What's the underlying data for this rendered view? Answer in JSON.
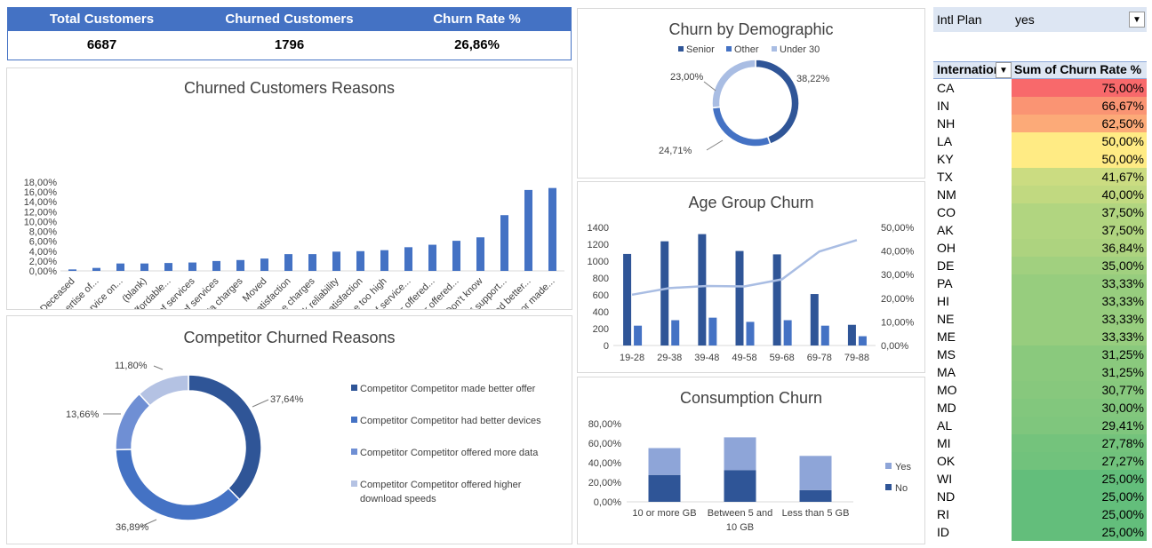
{
  "kpi": {
    "headers": [
      "Total Customers",
      "Churned Customers",
      "Churn Rate %"
    ],
    "values": [
      "6687",
      "1796",
      "26,86%"
    ]
  },
  "reasons_chart": {
    "title": "Churned Customers Reasons",
    "yticks": [
      "0,00%",
      "2,00%",
      "4,00%",
      "6,00%",
      "8,00%",
      "10,00%",
      "12,00%",
      "14,00%",
      "16,00%",
      "18,00%"
    ],
    "color": "#4472c4",
    "chart_data": {
      "type": "bar",
      "categories": [
        "Deceased",
        "Poor expertise of...",
        "Lack of self-service on...",
        "(blank)",
        "Lack of affordable...",
        "Poor expertise of services",
        "Limited range of services",
        "Extra data charges",
        "Moved",
        "Service dissatisfaction",
        "Long distance charges",
        "Network reliability",
        "Product dissatisfaction",
        "Price too high",
        "Attitude of service...",
        "Competitor offered...",
        "Competitor offered...",
        "Don't know",
        "Attitude of support...",
        "Competitor had better...",
        "Competitor made..."
      ],
      "values": [
        0.3,
        0.6,
        1.5,
        1.5,
        1.6,
        1.7,
        2.0,
        2.2,
        2.5,
        3.4,
        3.4,
        3.9,
        4.0,
        4.2,
        4.8,
        5.3,
        6.1,
        6.8,
        11.3,
        16.4,
        16.8
      ],
      "ylim": [
        0,
        18
      ]
    }
  },
  "competitor_chart": {
    "title": "Competitor Churned Reasons",
    "chart_data": {
      "type": "pie",
      "labels": [
        "Competitor Competitor made better offer",
        "Competitor Competitor had better devices",
        "Competitor Competitor offered more data",
        "Competitor Competitor offered higher download speeds"
      ],
      "values": [
        37.64,
        36.89,
        13.66,
        11.8
      ],
      "value_labels": [
        "37,64%",
        "36,89%",
        "13,66%",
        "11,80%"
      ],
      "colors": [
        "#2f5597",
        "#4472c4",
        "#6f8fd4",
        "#b4c2e3"
      ],
      "legend_position": "right"
    }
  },
  "demographic_chart": {
    "title": "Churn by Demographic",
    "chart_data": {
      "type": "pie",
      "labels": [
        "Senior",
        "Other",
        "Under 30"
      ],
      "values": [
        38.22,
        24.71,
        23.0
      ],
      "value_labels": [
        "38,22%",
        "24,71%",
        "23,00%"
      ],
      "colors": [
        "#2f5597",
        "#4472c4",
        "#a9bde3"
      ],
      "legend_position": "top"
    }
  },
  "age_chart": {
    "title": "Age Group Churn",
    "yticks_left": [
      "0",
      "200",
      "400",
      "600",
      "800",
      "1000",
      "1200",
      "1400"
    ],
    "yticks_right": [
      "0,00%",
      "10,00%",
      "20,00%",
      "30,00%",
      "40,00%",
      "50,00%"
    ],
    "colors": {
      "total": "#2f5597",
      "churned": "#4472c4",
      "rate": "#a9bde3"
    },
    "chart_data": {
      "type": "bar",
      "categories": [
        "19-28",
        "29-38",
        "39-48",
        "49-58",
        "59-68",
        "69-78",
        "79-88"
      ],
      "series": [
        {
          "values": [
            1085,
            1235,
            1320,
            1120,
            1080,
            610,
            245
          ]
        },
        {
          "values": [
            235,
            300,
            330,
            280,
            300,
            235,
            110
          ]
        },
        {
          "type": "line",
          "axis": "right",
          "values": [
            21.5,
            24.3,
            25.2,
            25.0,
            28.0,
            39.8,
            44.6
          ]
        }
      ],
      "ylim": [
        0,
        1400
      ],
      "ylim_right": [
        0,
        50
      ]
    }
  },
  "consumption_chart": {
    "title": "Consumption Churn",
    "yticks": [
      "0,00%",
      "20,00%",
      "40,00%",
      "60,00%",
      "80,00%"
    ],
    "cat_labels": [
      [
        "10 or more GB"
      ],
      [
        "Between 5 and",
        "10 GB"
      ],
      [
        "Less than 5 GB"
      ]
    ],
    "chart_data": {
      "type": "bar",
      "stacked": true,
      "categories": [
        "10 or more GB",
        "Between 5 and 10 GB",
        "Less than 5 GB"
      ],
      "series": [
        {
          "name": "No",
          "color": "#2f5597",
          "values": [
            27.5,
            32.5,
            12.0
          ]
        },
        {
          "name": "Yes",
          "color": "#8ea5d8",
          "values": [
            27.5,
            33.5,
            35.0
          ]
        }
      ],
      "ylim": [
        0,
        80
      ],
      "legend_position": "right"
    }
  },
  "pivot": {
    "filter_label": "Intl Plan",
    "filter_value": "yes",
    "col1": "International Plan",
    "col2": "Sum of Churn Rate %",
    "rows": [
      {
        "state": "CA",
        "rate": "75,00%",
        "v": 75.0
      },
      {
        "state": "IN",
        "rate": "66,67%",
        "v": 66.67
      },
      {
        "state": "NH",
        "rate": "62,50%",
        "v": 62.5
      },
      {
        "state": "LA",
        "rate": "50,00%",
        "v": 50.0
      },
      {
        "state": "KY",
        "rate": "50,00%",
        "v": 50.0
      },
      {
        "state": "TX",
        "rate": "41,67%",
        "v": 41.67
      },
      {
        "state": "NM",
        "rate": "40,00%",
        "v": 40.0
      },
      {
        "state": "CO",
        "rate": "37,50%",
        "v": 37.5
      },
      {
        "state": "AK",
        "rate": "37,50%",
        "v": 37.5
      },
      {
        "state": "OH",
        "rate": "36,84%",
        "v": 36.84
      },
      {
        "state": "DE",
        "rate": "35,00%",
        "v": 35.0
      },
      {
        "state": "PA",
        "rate": "33,33%",
        "v": 33.33
      },
      {
        "state": "HI",
        "rate": "33,33%",
        "v": 33.33
      },
      {
        "state": "NE",
        "rate": "33,33%",
        "v": 33.33
      },
      {
        "state": "ME",
        "rate": "33,33%",
        "v": 33.33
      },
      {
        "state": "MS",
        "rate": "31,25%",
        "v": 31.25
      },
      {
        "state": "MA",
        "rate": "31,25%",
        "v": 31.25
      },
      {
        "state": "MO",
        "rate": "30,77%",
        "v": 30.77
      },
      {
        "state": "MD",
        "rate": "30,00%",
        "v": 30.0
      },
      {
        "state": "AL",
        "rate": "29,41%",
        "v": 29.41
      },
      {
        "state": "MI",
        "rate": "27,78%",
        "v": 27.78
      },
      {
        "state": "OK",
        "rate": "27,27%",
        "v": 27.27
      },
      {
        "state": "WI",
        "rate": "25,00%",
        "v": 25.0
      },
      {
        "state": "ND",
        "rate": "25,00%",
        "v": 25.0
      },
      {
        "state": "RI",
        "rate": "25,00%",
        "v": 25.0
      },
      {
        "state": "ID",
        "rate": "25,00%",
        "v": 25.0
      }
    ]
  }
}
